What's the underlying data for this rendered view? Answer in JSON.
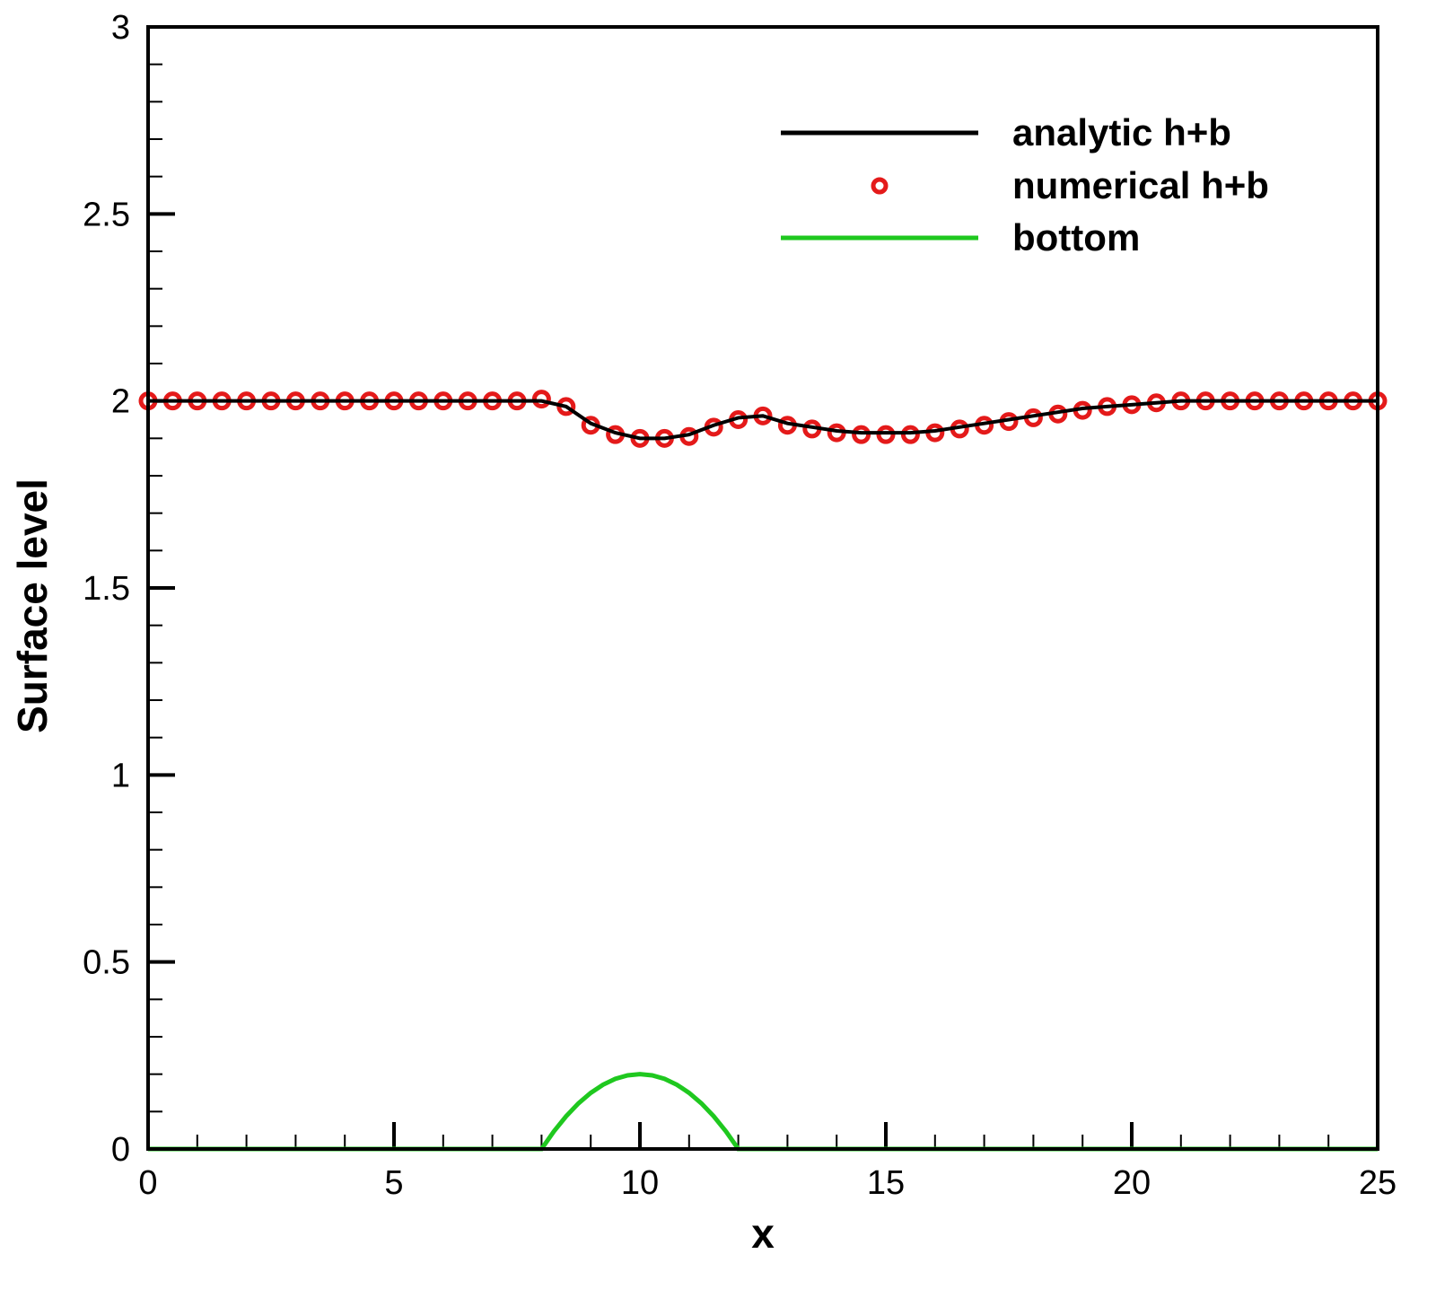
{
  "chart_data": {
    "type": "line",
    "xlabel": "x",
    "ylabel": "Surface level",
    "xlim": [
      0,
      25
    ],
    "ylim": [
      0,
      3
    ],
    "x_ticks": [
      0,
      5,
      10,
      15,
      20,
      25
    ],
    "x_tick_labels": [
      "0",
      "5",
      "10",
      "15",
      "20",
      "25"
    ],
    "y_ticks": [
      0,
      0.5,
      1,
      1.5,
      2,
      2.5,
      3
    ],
    "y_tick_labels": [
      "0",
      "0.5",
      "1",
      "1.5",
      "2",
      "2.5",
      "3"
    ],
    "grid": false,
    "legend_position": "top-right",
    "colors": {
      "analytic": "#000000",
      "numerical": "#e41a1a",
      "bottom": "#1fc81f"
    },
    "series": [
      {
        "name": "analytic h+b",
        "style": "line",
        "x": [
          0,
          0.5,
          1,
          1.5,
          2,
          2.5,
          3,
          3.5,
          4,
          4.5,
          5,
          5.5,
          6,
          6.5,
          7,
          7.5,
          8,
          8.5,
          9,
          9.5,
          10,
          10.5,
          11,
          11.5,
          12,
          12.5,
          13,
          13.5,
          14,
          14.5,
          15,
          15.5,
          16,
          16.5,
          17,
          17.5,
          18,
          18.5,
          19,
          19.5,
          20,
          20.5,
          21,
          21.5,
          22,
          22.5,
          23,
          23.5,
          24,
          24.5,
          25
        ],
        "y": [
          2,
          2,
          2,
          2,
          2,
          2,
          2,
          2,
          2,
          2,
          2,
          2,
          2,
          2,
          2,
          2,
          2,
          1.985,
          1.94,
          1.915,
          1.9,
          1.9,
          1.91,
          1.935,
          1.955,
          1.96,
          1.94,
          1.93,
          1.92,
          1.915,
          1.915,
          1.915,
          1.92,
          1.93,
          1.94,
          1.95,
          1.96,
          1.97,
          1.98,
          1.985,
          1.99,
          1.995,
          2,
          2,
          2,
          2,
          2,
          2,
          2,
          2,
          2
        ]
      },
      {
        "name": "numerical h+b",
        "style": "markers",
        "x": [
          0,
          0.5,
          1,
          1.5,
          2,
          2.5,
          3,
          3.5,
          4,
          4.5,
          5,
          5.5,
          6,
          6.5,
          7,
          7.5,
          8,
          8.5,
          9,
          9.5,
          10,
          10.5,
          11,
          11.5,
          12,
          12.5,
          13,
          13.5,
          14,
          14.5,
          15,
          15.5,
          16,
          16.5,
          17,
          17.5,
          18,
          18.5,
          19,
          19.5,
          20,
          20.5,
          21,
          21.5,
          22,
          22.5,
          23,
          23.5,
          24,
          24.5,
          25
        ],
        "y": [
          2,
          2,
          2,
          2,
          2,
          2,
          2,
          2,
          2,
          2,
          2,
          2,
          2,
          2,
          2,
          2,
          2.005,
          1.985,
          1.935,
          1.91,
          1.9,
          1.9,
          1.905,
          1.93,
          1.95,
          1.96,
          1.935,
          1.925,
          1.915,
          1.91,
          1.91,
          1.91,
          1.915,
          1.925,
          1.935,
          1.945,
          1.955,
          1.965,
          1.975,
          1.985,
          1.99,
          1.995,
          2,
          2,
          2,
          2,
          2,
          2,
          2,
          2,
          2
        ]
      },
      {
        "name": "bottom",
        "style": "line",
        "x": [
          0,
          8,
          8.25,
          8.5,
          8.75,
          9,
          9.25,
          9.5,
          9.75,
          10,
          10.25,
          10.5,
          10.75,
          11,
          11.25,
          11.5,
          11.75,
          12,
          25
        ],
        "y": [
          0,
          0,
          0.0469,
          0.0875,
          0.1219,
          0.15,
          0.1719,
          0.1875,
          0.1969,
          0.2,
          0.1969,
          0.1875,
          0.1719,
          0.15,
          0.1219,
          0.0875,
          0.0469,
          0,
          0
        ]
      }
    ]
  }
}
